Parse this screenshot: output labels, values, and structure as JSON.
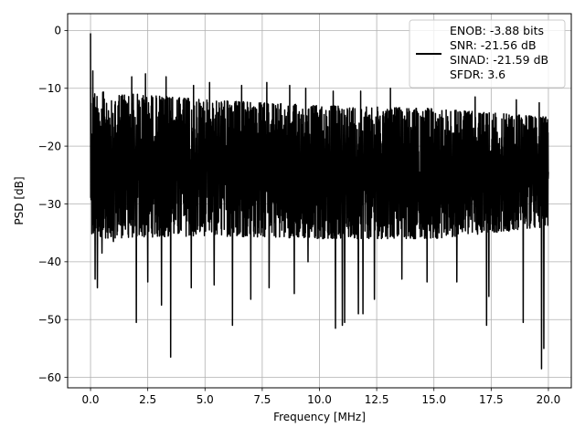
{
  "chart_data": {
    "type": "line",
    "title": "",
    "xlabel": "Frequency [MHz]",
    "ylabel": "PSD [dB]",
    "xlim": [
      -1.0,
      21.0
    ],
    "ylim": [
      -61.8,
      2.9
    ],
    "xticks": [
      0.0,
      2.5,
      5.0,
      7.5,
      10.0,
      12.5,
      15.0,
      17.5,
      20.0
    ],
    "xtick_labels": [
      "0.0",
      "2.5",
      "5.0",
      "7.5",
      "10.0",
      "12.5",
      "15.0",
      "17.5",
      "20.0"
    ],
    "yticks": [
      0,
      -10,
      -20,
      -30,
      -40,
      -50,
      -60
    ],
    "ytick_labels": [
      "0",
      "−10",
      "−20",
      "−30",
      "−40",
      "−50",
      "−60"
    ],
    "grid": true,
    "legend": {
      "position": "top-right",
      "lines": [
        "ENOB: -3.88 bits",
        "SNR: -21.56 dB",
        "SINAD: -21.59 dB",
        "SFDR: 3.6"
      ]
    },
    "series": [
      {
        "color": "#000000",
        "x_start": 0.0,
        "x_end": 20.0,
        "dc_value": -0.5,
        "upper_envelope": [
          [
            0.0,
            -10.5
          ],
          [
            2.0,
            -11.0
          ],
          [
            5.0,
            -12.0
          ],
          [
            10.0,
            -13.0
          ],
          [
            15.0,
            -13.5
          ],
          [
            20.0,
            -15.0
          ]
        ],
        "lower_envelope": [
          [
            0.0,
            -36.0
          ],
          [
            5.0,
            -35.5
          ],
          [
            10.0,
            -36.0
          ],
          [
            15.0,
            -36.0
          ],
          [
            20.0,
            -34.0
          ]
        ],
        "spikes_up": [
          [
            0.1,
            -7.0
          ],
          [
            1.8,
            -8.0
          ],
          [
            2.4,
            -7.5
          ],
          [
            3.3,
            -8.0
          ],
          [
            4.5,
            -9.5
          ],
          [
            5.2,
            -9.0
          ],
          [
            6.6,
            -9.5
          ],
          [
            7.7,
            -9.0
          ],
          [
            8.7,
            -9.5
          ],
          [
            9.4,
            -10.0
          ],
          [
            10.6,
            -10.5
          ],
          [
            11.8,
            -10.5
          ],
          [
            13.1,
            -10.0
          ],
          [
            14.7,
            -10.0
          ],
          [
            16.8,
            -11.5
          ],
          [
            18.6,
            -12.0
          ],
          [
            19.6,
            -12.5
          ]
        ],
        "spikes_down": [
          [
            0.2,
            -43.0
          ],
          [
            0.3,
            -44.5
          ],
          [
            0.5,
            -38.5
          ],
          [
            1.0,
            -36.5
          ],
          [
            2.0,
            -50.5
          ],
          [
            2.5,
            -43.5
          ],
          [
            3.1,
            -47.5
          ],
          [
            3.5,
            -56.5
          ],
          [
            4.4,
            -44.5
          ],
          [
            5.4,
            -44.0
          ],
          [
            6.2,
            -51.0
          ],
          [
            7.0,
            -46.5
          ],
          [
            7.8,
            -44.5
          ],
          [
            8.9,
            -45.5
          ],
          [
            9.5,
            -40.0
          ],
          [
            10.7,
            -51.5
          ],
          [
            11.0,
            -51.0
          ],
          [
            11.1,
            -50.5
          ],
          [
            11.7,
            -49.0
          ],
          [
            11.9,
            -49.0
          ],
          [
            12.4,
            -46.5
          ],
          [
            13.6,
            -43.0
          ],
          [
            14.7,
            -43.5
          ],
          [
            16.0,
            -43.5
          ],
          [
            17.3,
            -51.0
          ],
          [
            17.4,
            -46.0
          ],
          [
            18.9,
            -50.5
          ],
          [
            19.7,
            -58.5
          ],
          [
            19.8,
            -55.0
          ]
        ]
      }
    ]
  }
}
